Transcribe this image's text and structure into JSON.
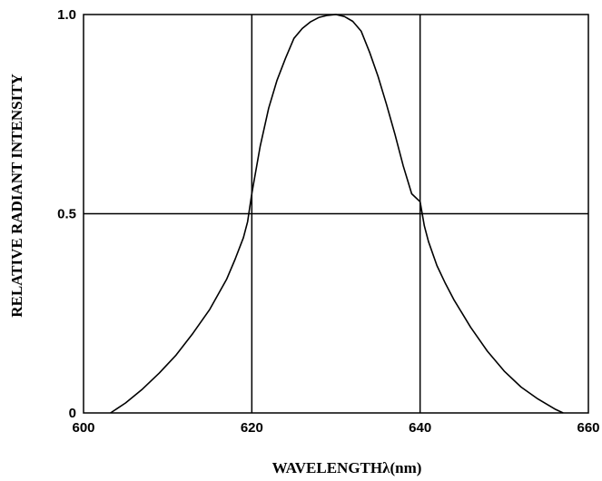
{
  "chart_data": {
    "type": "line",
    "title": "",
    "xlabel": "WAVELENGTHλ(nm)",
    "ylabel": "RELATIVE  RADIANT  INTENSITY",
    "xlim": [
      600,
      660
    ],
    "ylim": [
      0,
      1.0
    ],
    "x_ticks": [
      600,
      620,
      640,
      660
    ],
    "x_tick_labels": [
      "600",
      "620",
      "640",
      "660"
    ],
    "y_ticks": [
      0,
      0.5,
      1.0
    ],
    "y_tick_labels": [
      "0",
      "0.5",
      "1.0"
    ],
    "grid": true,
    "grid_x": [
      620,
      640
    ],
    "grid_y": [
      0.5
    ],
    "series": [
      {
        "color": "#000000",
        "x": [
          603.2,
          605,
          607,
          609,
          611,
          613,
          615,
          617,
          618,
          619,
          619.5,
          620,
          621,
          622,
          623,
          624,
          625,
          626,
          627,
          628,
          629,
          630,
          631,
          632,
          633,
          634,
          635,
          636,
          637,
          638,
          639,
          640,
          640.5,
          641,
          642,
          643,
          644,
          646,
          648,
          650,
          652,
          654,
          656,
          657
        ],
        "y": [
          0.0,
          0.025,
          0.06,
          0.1,
          0.145,
          0.2,
          0.26,
          0.335,
          0.385,
          0.44,
          0.48,
          0.55,
          0.67,
          0.765,
          0.835,
          0.89,
          0.94,
          0.965,
          0.982,
          0.993,
          0.998,
          1.0,
          0.995,
          0.983,
          0.958,
          0.905,
          0.845,
          0.775,
          0.7,
          0.62,
          0.55,
          0.53,
          0.47,
          0.43,
          0.37,
          0.325,
          0.285,
          0.215,
          0.155,
          0.105,
          0.065,
          0.035,
          0.01,
          0.0
        ]
      }
    ]
  }
}
